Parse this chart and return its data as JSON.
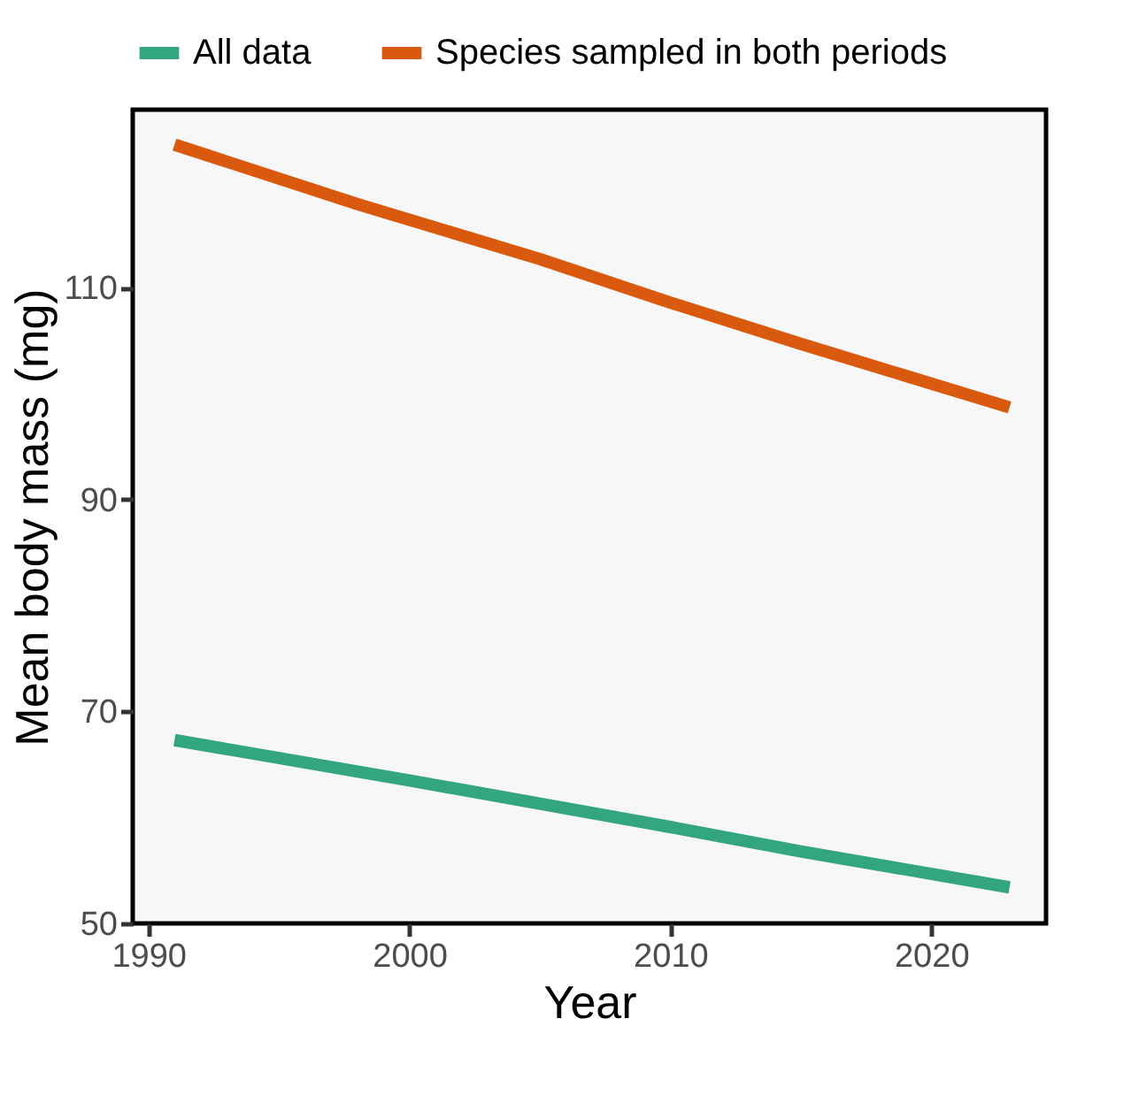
{
  "chart_data": {
    "type": "line",
    "xlabel": "Year",
    "ylabel": "Mean body mass (mg)",
    "xlim": [
      1989.4,
      2024.4
    ],
    "xticks": [
      1990,
      2000,
      2010,
      2020
    ],
    "ylim": [
      50,
      126.8
    ],
    "yticks": [
      50,
      70,
      90,
      110
    ],
    "grid": false,
    "legend": "top",
    "marker": "none",
    "line_style": "solid",
    "series": [
      {
        "name": "All data",
        "color": "#33a67d",
        "x": [
          1991,
          2000,
          2010,
          2015,
          2023
        ],
        "values": [
          67.3,
          63.5,
          59.1,
          56.8,
          53.4
        ]
      },
      {
        "name": "Species sampled in both periods",
        "color": "#d95a0f",
        "x": [
          1991,
          1998,
          2005,
          2010,
          2015,
          2023
        ],
        "values": [
          123.5,
          117.9,
          112.7,
          108.6,
          104.7,
          98.7
        ]
      }
    ]
  }
}
